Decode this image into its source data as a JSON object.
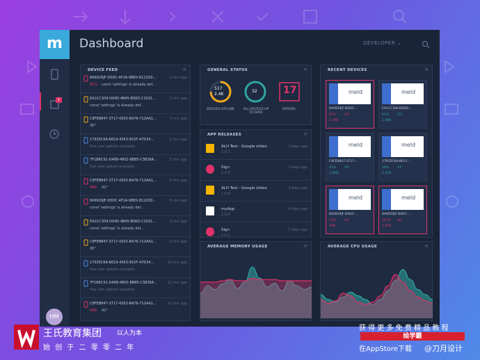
{
  "header": {
    "logo": "m",
    "title": "Dashboard",
    "user": "DEVELOPER",
    "badge": "1"
  },
  "device_feed": {
    "title": "DEVICE FEED",
    "items": [
      {
        "id": "8A6929JF-D0DC-4F2A-9BE0-8122D0...",
        "message": "const 'settings' is already def...",
        "level": "error",
        "time": "2 min ago",
        "stat": "95%"
      },
      {
        "id": "EA1CC309-D04D-4B45-B56D-C3291...",
        "message": "const 'settings' is already def...",
        "level": "warn",
        "time": "2 min ago"
      },
      {
        "id": "C8FEB847-3717-4203-8A76-712AA1...",
        "message": "36°",
        "level": "warn",
        "time": "3 min ago"
      },
      {
        "id": "17935C6A-B619-4563-815F-47D34...",
        "message": "Has new update available",
        "level": "info",
        "time": "5 min ago"
      },
      {
        "id": "7F1B6C91-D46B-4802-8B85-C3B36A...",
        "message": "Has new update available",
        "level": "info",
        "time": "5 min ago"
      },
      {
        "id": "C8FEB847-3717-4203-8A76-712AA1...",
        "message": "42°",
        "level": "error",
        "time": "6 min ago",
        "stat": "4RB"
      },
      {
        "id": "8A6929JF-D0DC-4F2A-9BE0-8122D0...",
        "message": "const 'settings' is already def...",
        "level": "error",
        "time": "8 min ago"
      },
      {
        "id": "EA1CC309-D04D-4B45-B56D-C3291...",
        "message": "const 'settings' is already def...",
        "level": "warn",
        "time": "9 min ago"
      },
      {
        "id": "C8FEB847-3717-4203-8A76-712AA1...",
        "message": "36°",
        "level": "warn",
        "time": "9 min ago"
      },
      {
        "id": "17935C6A-B619-4563-815F-47D34...",
        "message": "Has new update available",
        "level": "info",
        "time": "10 min ago"
      },
      {
        "id": "7F1B6C91-D46B-4802-8B85-C3B36A...",
        "message": "Has new update available",
        "level": "info",
        "time": "12 min ago"
      },
      {
        "id": "C8FEB847-3717-4203-8A76-712AA1...",
        "message": "42°",
        "level": "error",
        "time": "12 min ago",
        "stat": "4RB"
      }
    ]
  },
  "general_status": {
    "title": "GENERAL STATUS",
    "offline_value": "517",
    "offline_total": "2.4K",
    "offline_label": "DEVICES OFFLINE",
    "uptodate_value": "32",
    "uptodate_label": "ALL DEVICES UP TO DATE",
    "errors_value": "17",
    "errors_label": "ERRORS"
  },
  "app_releases": {
    "title": "APP RELEASES",
    "items": [
      {
        "name": "ALH Test - Google slides",
        "version": "1.0.1",
        "time": "2 days ago",
        "icon": "slides"
      },
      {
        "name": "Sign",
        "version": "1.1.3",
        "time": "2 days ago",
        "icon": "sign"
      },
      {
        "name": "ALH Test - Google slides",
        "version": "1.0.0",
        "time": "3 days ago",
        "icon": "slides"
      },
      {
        "name": "myApp",
        "version": "1.0.0",
        "time": "4 days ago",
        "icon": "app"
      },
      {
        "name": "Sign",
        "version": "1.0.1",
        "time": "5 days ago",
        "icon": "sign"
      }
    ]
  },
  "recent_devices": {
    "title": "RECENT DEVICES",
    "screen": "meld",
    "items": [
      {
        "id": "8A6929JF-D0DC-...",
        "stats": [
          "87%",
          "24°",
          "1.4RB"
        ],
        "selected": true
      },
      {
        "id": "EA1CC309-B0DD-...",
        "stats": [
          "61%",
          "22°",
          "2.4RB"
        ],
        "selected": false
      },
      {
        "id": "C8FEB847-3717-...",
        "stats": [
          "41%",
          "26°",
          "1.6RB"
        ],
        "selected": false
      },
      {
        "id": "17935C6A-B611-...",
        "stats": [
          "56%",
          "21°",
          "2.1RB"
        ],
        "selected": false
      },
      {
        "id": "8A6929JF-D0DC-...",
        "stats": [
          "23%",
          "42°",
          "4RB"
        ],
        "selected": true
      },
      {
        "id": "8A6929JF-D0DC-...",
        "stats": [
          "257%",
          "36°",
          "2.1RB"
        ],
        "selected": true
      }
    ]
  },
  "memory": {
    "title": "AVERAGE MEMORY USAGE",
    "series": [
      {
        "color": "#2fa6a0",
        "values": [
          40,
          52,
          46,
          55,
          62,
          48,
          58,
          82,
          64,
          50,
          56,
          44,
          60,
          52,
          46,
          50
        ]
      },
      {
        "color": "#e0336a",
        "values": [
          58,
          58,
          58,
          60,
          62,
          60,
          60,
          64,
          62,
          62,
          62,
          60,
          60,
          60,
          60,
          60
        ]
      }
    ]
  },
  "cpu": {
    "title": "AVERAGE CPU USAGE",
    "series": [
      {
        "color": "#2fa6a0",
        "values": [
          38,
          30,
          26,
          34,
          42,
          36,
          30,
          22,
          30,
          44,
          60,
          78,
          62,
          46,
          38,
          30
        ]
      },
      {
        "color": "#e0336a",
        "values": [
          30,
          24,
          28,
          40,
          36,
          26,
          22,
          26,
          36,
          52,
          70,
          58,
          44,
          34,
          28,
          24
        ]
      }
    ]
  },
  "watermark": {
    "org": "王氏教育集团",
    "motto": "以人为本",
    "since": "始 创 于 二 零 零 二 年",
    "promo": "获 得 更 多 免 费 精 品 教 程",
    "brand": "绘学霸",
    "store": "在AppStore下载",
    "author": "@刀月设计",
    "avatar": "HM"
  }
}
